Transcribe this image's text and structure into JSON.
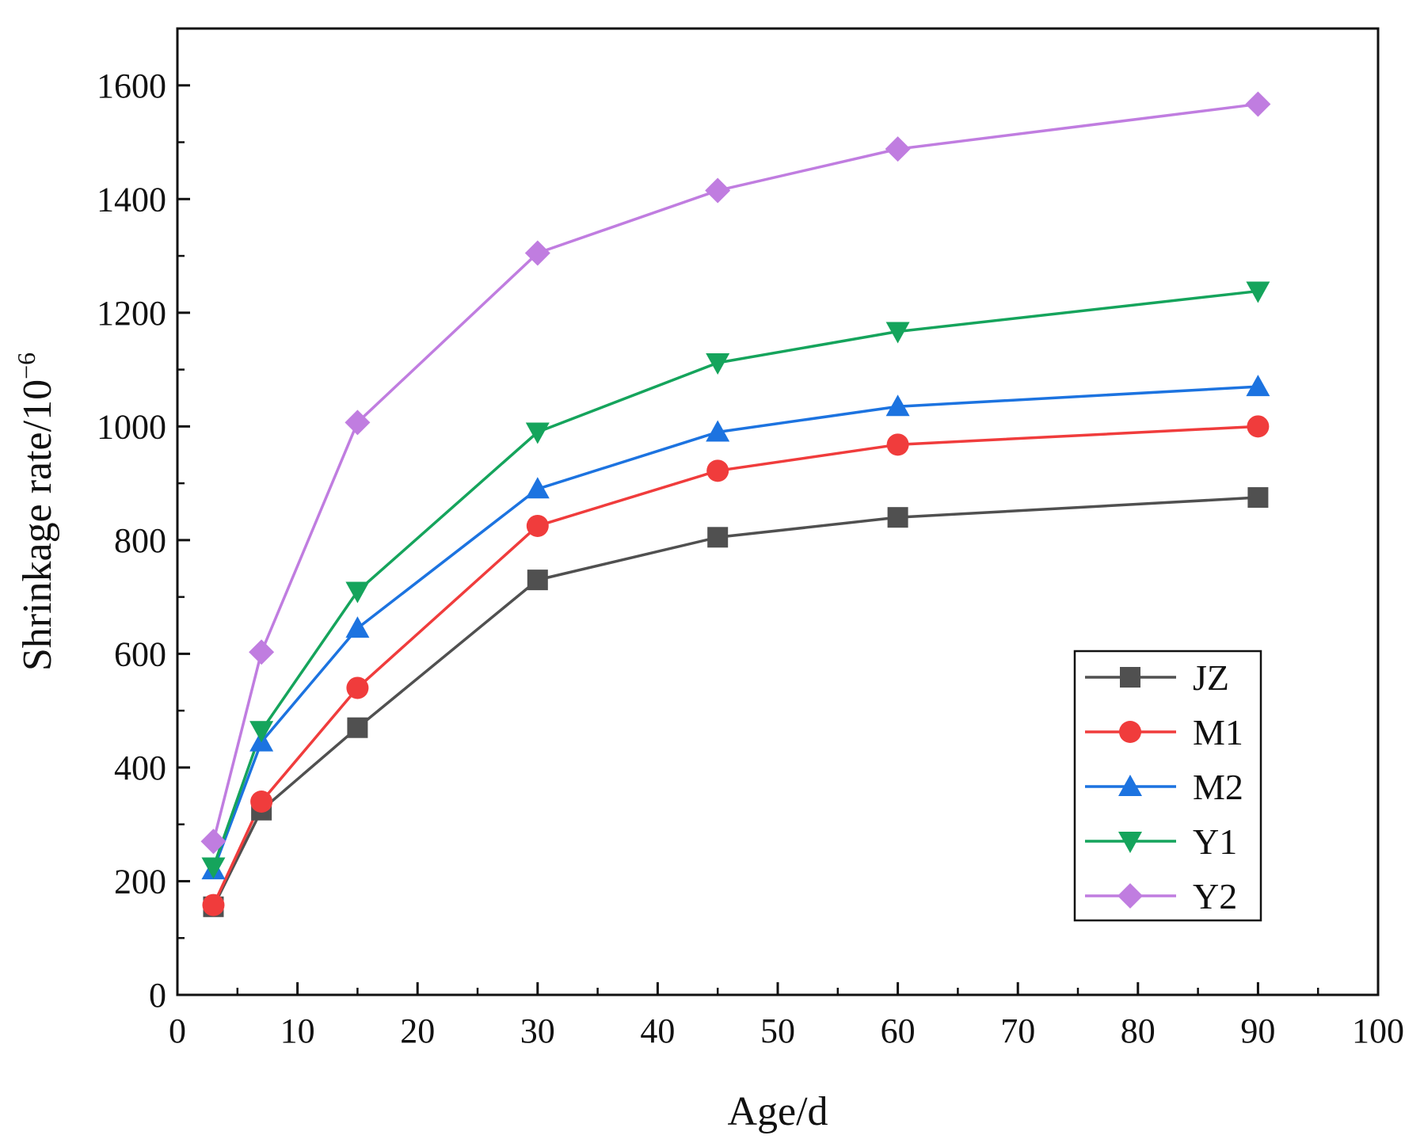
{
  "chart_data": {
    "type": "line",
    "title": "",
    "xlabel": "Age/d",
    "ylabel": "Shrinkage rate/10",
    "ylabel_exponent": "−6",
    "xlim": [
      0,
      100
    ],
    "ylim": [
      0,
      1700
    ],
    "x_ticks": [
      0,
      10,
      20,
      30,
      40,
      50,
      60,
      70,
      80,
      90,
      100
    ],
    "y_ticks": [
      0,
      200,
      400,
      600,
      800,
      1000,
      1200,
      1400,
      1600
    ],
    "grid": false,
    "legend_position": "bottom-right",
    "x": [
      3,
      7,
      15,
      30,
      45,
      60,
      90
    ],
    "series": [
      {
        "name": "JZ",
        "color": "#505050",
        "marker": "square",
        "values": [
          155,
          325,
          470,
          730,
          805,
          840,
          875
        ]
      },
      {
        "name": "M1",
        "color": "#f03c3c",
        "marker": "circle",
        "values": [
          158,
          340,
          540,
          825,
          922,
          968,
          1000
        ]
      },
      {
        "name": "M2",
        "color": "#1c73e0",
        "marker": "triangle-up",
        "values": [
          220,
          445,
          645,
          890,
          990,
          1035,
          1070
        ]
      },
      {
        "name": "Y1",
        "color": "#15a45c",
        "marker": "triangle-down",
        "values": [
          225,
          465,
          710,
          990,
          1112,
          1167,
          1238
        ]
      },
      {
        "name": "Y2",
        "color": "#c07de0",
        "marker": "diamond",
        "values": [
          270,
          603,
          1007,
          1305,
          1415,
          1488,
          1567
        ]
      }
    ]
  }
}
